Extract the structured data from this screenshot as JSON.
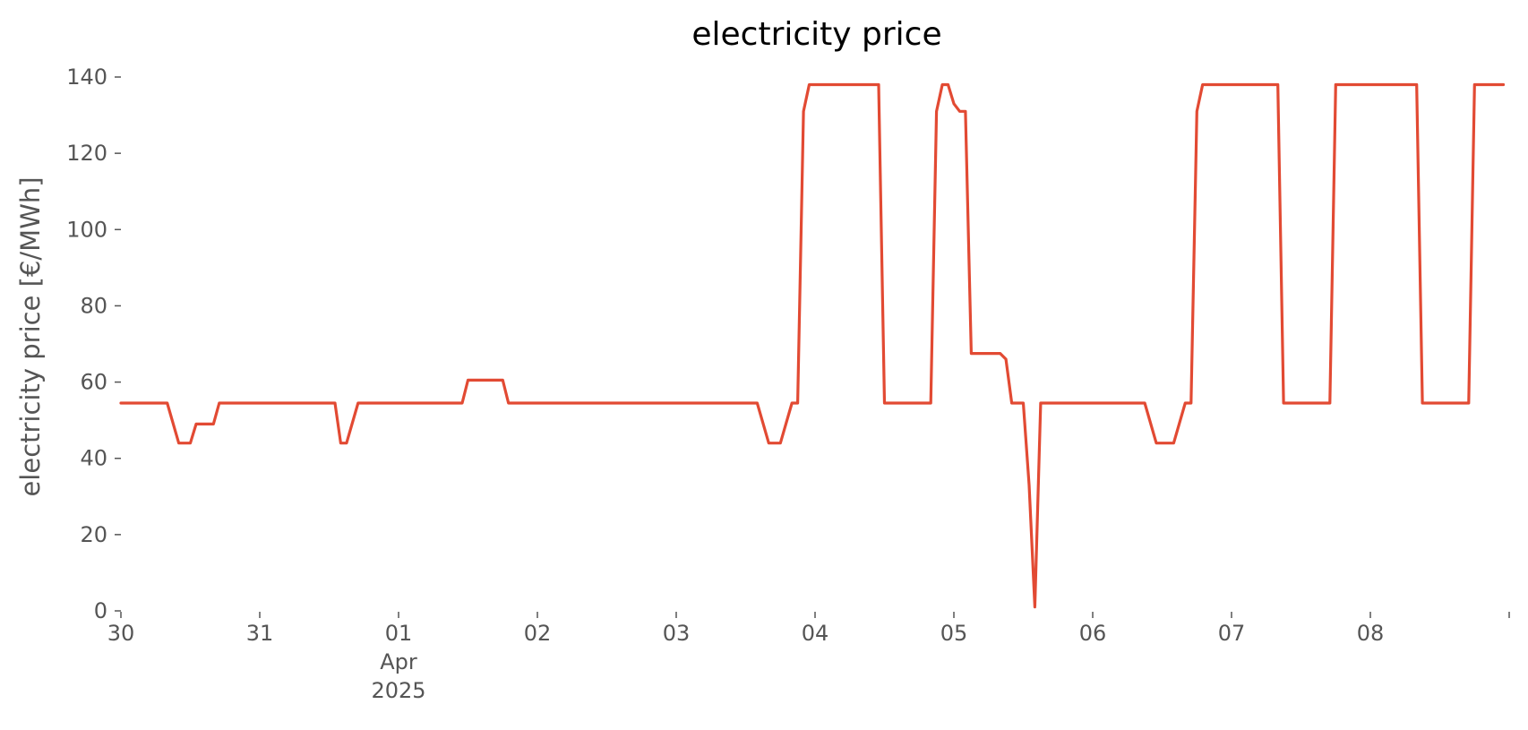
{
  "chart_data": {
    "type": "line",
    "title": "electricity price",
    "xlabel": "",
    "ylabel": "electricity price [€/MWh]",
    "ylim": [
      0,
      140
    ],
    "y_ticks": [
      0,
      20,
      40,
      60,
      80,
      100,
      120,
      140
    ],
    "x_range": [
      "2025-03-30T00:00",
      "2025-04-08T23:00"
    ],
    "x_ticks": [
      {
        "date": "2025-03-30",
        "label": "30"
      },
      {
        "date": "2025-03-31",
        "label": "31"
      },
      {
        "date": "2025-04-01",
        "label": "01",
        "sub": [
          "Apr",
          "2025"
        ]
      },
      {
        "date": "2025-04-02",
        "label": "02"
      },
      {
        "date": "2025-04-03",
        "label": "03"
      },
      {
        "date": "2025-04-04",
        "label": "04"
      },
      {
        "date": "2025-04-05",
        "label": "05"
      },
      {
        "date": "2025-04-06",
        "label": "06"
      },
      {
        "date": "2025-04-07",
        "label": "07"
      },
      {
        "date": "2025-04-08",
        "label": "08"
      },
      {
        "date": "2025-04-09",
        "label": ""
      }
    ],
    "grid": false,
    "line_color": "#E24A33",
    "series": [
      {
        "points": [
          [
            "2025-03-30T00:00",
            54.5
          ],
          [
            "2025-03-30T08:00",
            54.5
          ],
          [
            "2025-03-30T10:00",
            44
          ],
          [
            "2025-03-30T12:00",
            44
          ],
          [
            "2025-03-30T13:00",
            49
          ],
          [
            "2025-03-30T16:00",
            49
          ],
          [
            "2025-03-30T17:00",
            54.5
          ],
          [
            "2025-03-31T13:00",
            54.5
          ],
          [
            "2025-03-31T14:00",
            44
          ],
          [
            "2025-03-31T15:00",
            44
          ],
          [
            "2025-03-31T17:00",
            54.5
          ],
          [
            "2025-04-01T11:00",
            54.5
          ],
          [
            "2025-04-01T12:00",
            60.5
          ],
          [
            "2025-04-01T18:00",
            60.5
          ],
          [
            "2025-04-01T19:00",
            54.5
          ],
          [
            "2025-04-03T14:00",
            54.5
          ],
          [
            "2025-04-03T16:00",
            44
          ],
          [
            "2025-04-03T18:00",
            44
          ],
          [
            "2025-04-03T20:00",
            54.5
          ],
          [
            "2025-04-03T21:00",
            54.5
          ],
          [
            "2025-04-03T22:00",
            131
          ],
          [
            "2025-04-03T23:00",
            138
          ],
          [
            "2025-04-04T11:00",
            138
          ],
          [
            "2025-04-04T12:00",
            54.5
          ],
          [
            "2025-04-04T20:00",
            54.5
          ],
          [
            "2025-04-04T21:00",
            131
          ],
          [
            "2025-04-04T22:00",
            138
          ],
          [
            "2025-04-04T23:00",
            138
          ],
          [
            "2025-04-05T00:00",
            133
          ],
          [
            "2025-04-05T01:00",
            131
          ],
          [
            "2025-04-05T02:00",
            131
          ],
          [
            "2025-04-05T03:00",
            67.5
          ],
          [
            "2025-04-05T08:00",
            67.5
          ],
          [
            "2025-04-05T09:00",
            66
          ],
          [
            "2025-04-05T10:00",
            54.5
          ],
          [
            "2025-04-05T12:00",
            54.5
          ],
          [
            "2025-04-05T13:00",
            33
          ],
          [
            "2025-04-05T14:00",
            1
          ],
          [
            "2025-04-05T15:00",
            54.5
          ],
          [
            "2025-04-06T09:00",
            54.5
          ],
          [
            "2025-04-06T11:00",
            44
          ],
          [
            "2025-04-06T14:00",
            44
          ],
          [
            "2025-04-06T16:00",
            54.5
          ],
          [
            "2025-04-06T17:00",
            54.5
          ],
          [
            "2025-04-06T18:00",
            131
          ],
          [
            "2025-04-06T19:00",
            138
          ],
          [
            "2025-04-07T08:00",
            138
          ],
          [
            "2025-04-07T09:00",
            54.5
          ],
          [
            "2025-04-07T17:00",
            54.5
          ],
          [
            "2025-04-07T18:00",
            138
          ],
          [
            "2025-04-08T08:00",
            138
          ],
          [
            "2025-04-08T09:00",
            54.5
          ],
          [
            "2025-04-08T17:00",
            54.5
          ],
          [
            "2025-04-08T18:00",
            138
          ],
          [
            "2025-04-08T23:00",
            138
          ]
        ]
      }
    ]
  }
}
